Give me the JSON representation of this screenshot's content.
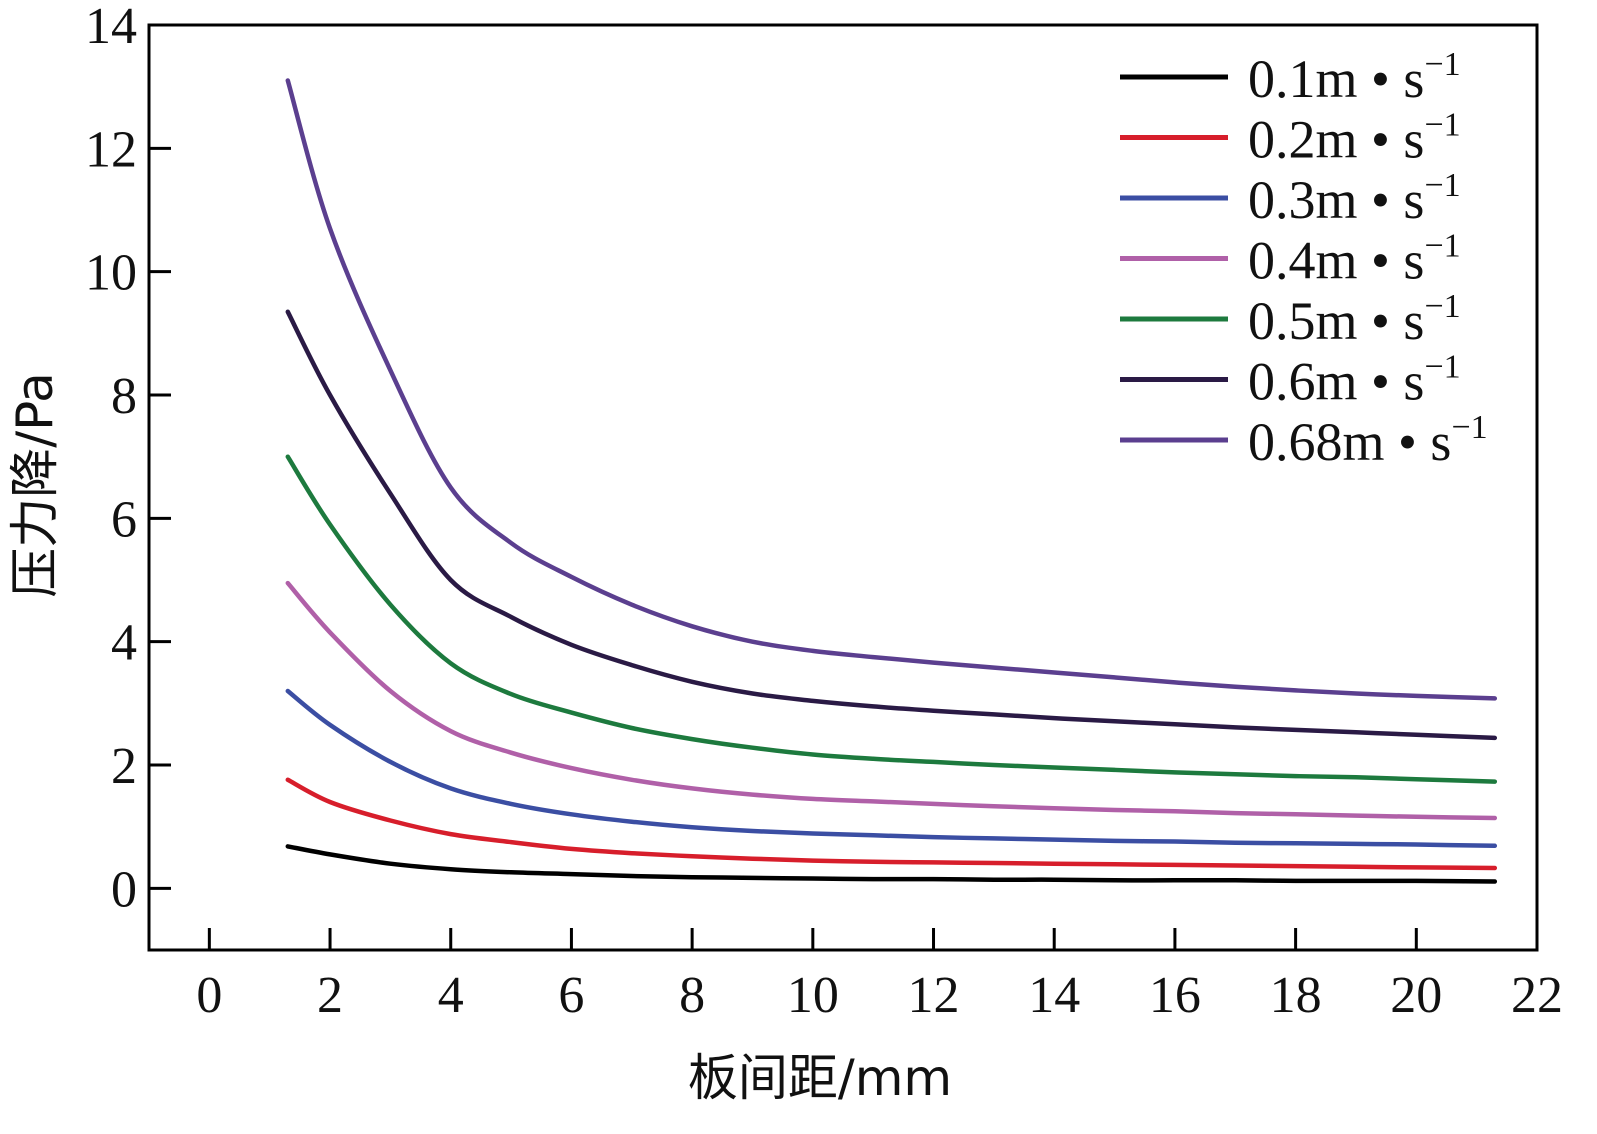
{
  "chart_data": {
    "type": "line",
    "xlabel": "板间距/mm",
    "ylabel": "压力降/Pa",
    "xlim": [
      -1,
      22
    ],
    "ylim": [
      -1,
      14
    ],
    "xticks": [
      0,
      2,
      4,
      6,
      8,
      10,
      12,
      14,
      16,
      18,
      20,
      22
    ],
    "yticks": [
      0,
      2,
      4,
      6,
      8,
      10,
      12,
      14
    ],
    "grid": false,
    "legend_position": "top-right",
    "legend_unit": "m • s",
    "legend_exponent": "−1",
    "x": [
      1.3,
      2,
      3,
      4,
      5,
      6,
      7,
      8,
      9,
      10,
      11,
      12,
      13,
      14,
      15,
      16,
      17,
      18,
      19,
      20,
      21.3
    ],
    "series": [
      {
        "name": "0.1",
        "color": "#000000",
        "values": [
          0.68,
          0.55,
          0.4,
          0.31,
          0.26,
          0.23,
          0.2,
          0.18,
          0.17,
          0.16,
          0.15,
          0.15,
          0.14,
          0.14,
          0.13,
          0.13,
          0.13,
          0.12,
          0.12,
          0.12,
          0.11
        ]
      },
      {
        "name": "0.2",
        "color": "#d71e2b",
        "values": [
          1.76,
          1.4,
          1.1,
          0.88,
          0.75,
          0.64,
          0.57,
          0.52,
          0.48,
          0.45,
          0.43,
          0.42,
          0.41,
          0.4,
          0.39,
          0.38,
          0.37,
          0.36,
          0.35,
          0.34,
          0.33
        ]
      },
      {
        "name": "0.3",
        "color": "#3b4ea3",
        "values": [
          3.2,
          2.65,
          2.05,
          1.62,
          1.37,
          1.2,
          1.08,
          0.99,
          0.93,
          0.89,
          0.86,
          0.83,
          0.81,
          0.79,
          0.77,
          0.76,
          0.74,
          0.73,
          0.72,
          0.71,
          0.69
        ]
      },
      {
        "name": "0.4",
        "color": "#b060a8",
        "values": [
          4.95,
          4.15,
          3.2,
          2.55,
          2.2,
          1.95,
          1.76,
          1.62,
          1.52,
          1.45,
          1.41,
          1.37,
          1.33,
          1.3,
          1.27,
          1.25,
          1.22,
          1.2,
          1.18,
          1.16,
          1.14
        ]
      },
      {
        "name": "0.5",
        "color": "#1d7a3e",
        "values": [
          7.0,
          5.9,
          4.6,
          3.65,
          3.15,
          2.85,
          2.6,
          2.42,
          2.28,
          2.17,
          2.1,
          2.05,
          2.0,
          1.96,
          1.92,
          1.88,
          1.85,
          1.82,
          1.8,
          1.77,
          1.73
        ]
      },
      {
        "name": "0.6",
        "color": "#2a1a45",
        "values": [
          9.35,
          8.0,
          6.4,
          5.0,
          4.4,
          3.95,
          3.62,
          3.35,
          3.16,
          3.04,
          2.95,
          2.88,
          2.82,
          2.76,
          2.71,
          2.66,
          2.61,
          2.57,
          2.53,
          2.49,
          2.44
        ]
      },
      {
        "name": "0.68",
        "color": "#5b3f8f",
        "values": [
          13.1,
          10.7,
          8.4,
          6.5,
          5.6,
          5.05,
          4.6,
          4.25,
          4.0,
          3.85,
          3.75,
          3.66,
          3.58,
          3.5,
          3.42,
          3.34,
          3.27,
          3.21,
          3.16,
          3.12,
          3.08
        ]
      }
    ]
  }
}
